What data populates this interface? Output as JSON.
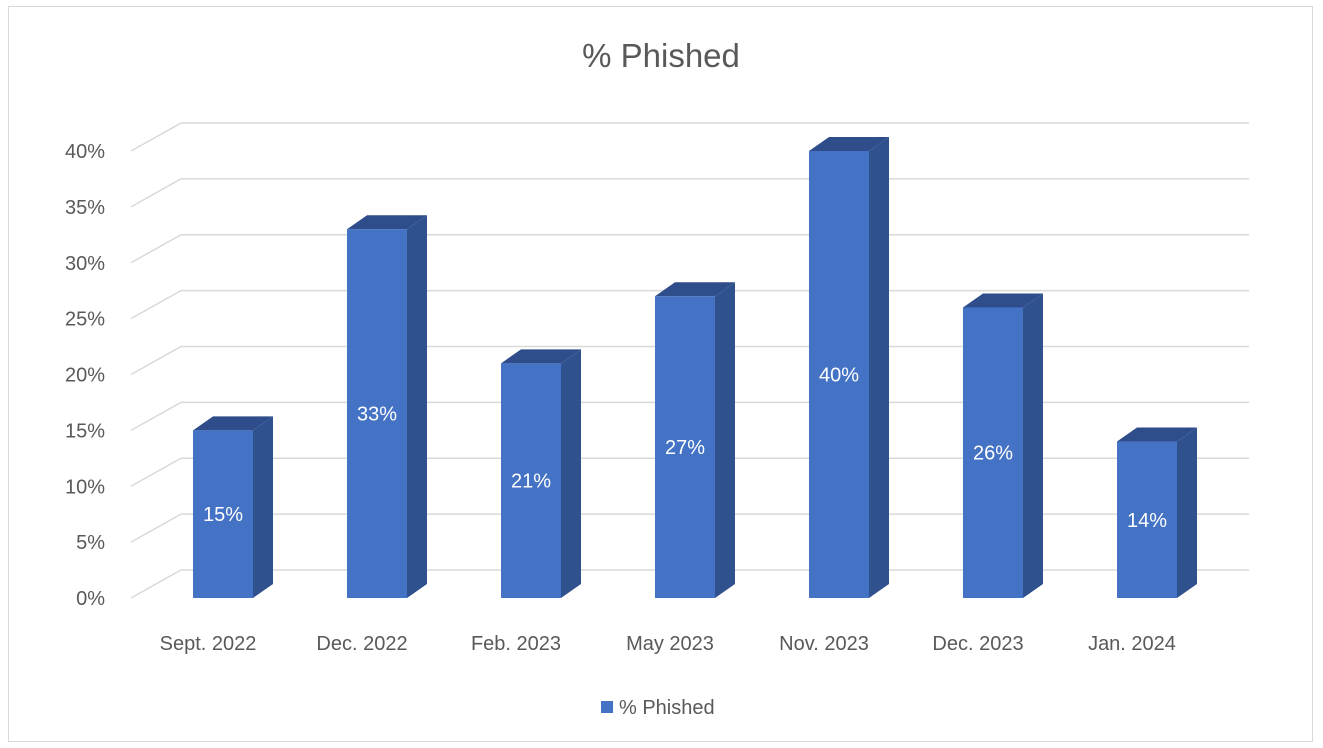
{
  "chart_data": {
    "type": "bar",
    "title": "% Phished",
    "categories": [
      "Sept. 2022",
      "Dec. 2022",
      "Feb. 2023",
      "May 2023",
      "Nov. 2023",
      "Dec. 2023",
      "Jan. 2024"
    ],
    "series": [
      {
        "name": "% Phished",
        "values": [
          15,
          33,
          21,
          27,
          40,
          26,
          14
        ],
        "data_labels": [
          "15%",
          "33%",
          "21%",
          "27%",
          "40%",
          "26%",
          "14%"
        ],
        "color": "#4472c4"
      }
    ],
    "y_ticks": [
      "0%",
      "5%",
      "10%",
      "15%",
      "20%",
      "25%",
      "30%",
      "35%",
      "40%"
    ],
    "ylim": [
      0,
      40
    ],
    "grid": true,
    "legend_position": "bottom",
    "style": "3d-column"
  },
  "colors": {
    "bar_front": "#4472c4",
    "bar_side": "#2f528f",
    "bar_top": "#2e4d8a",
    "gridline": "#d9d9d9",
    "text": "#595959"
  }
}
